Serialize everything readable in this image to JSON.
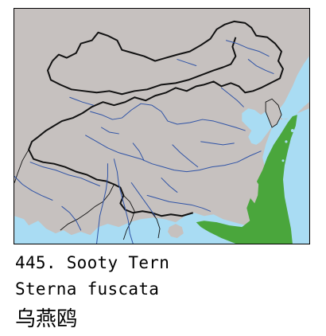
{
  "colors": {
    "land": "#c6c1bf",
    "sea": "#a9dcf3",
    "river": "#2f53a6",
    "border": "#111111",
    "range": "#4aa63c"
  },
  "species": {
    "number_and_common_name": "445. Sooty Tern",
    "scientific_name": "Sterna fuscata",
    "chinese_name": "乌燕鸥"
  }
}
